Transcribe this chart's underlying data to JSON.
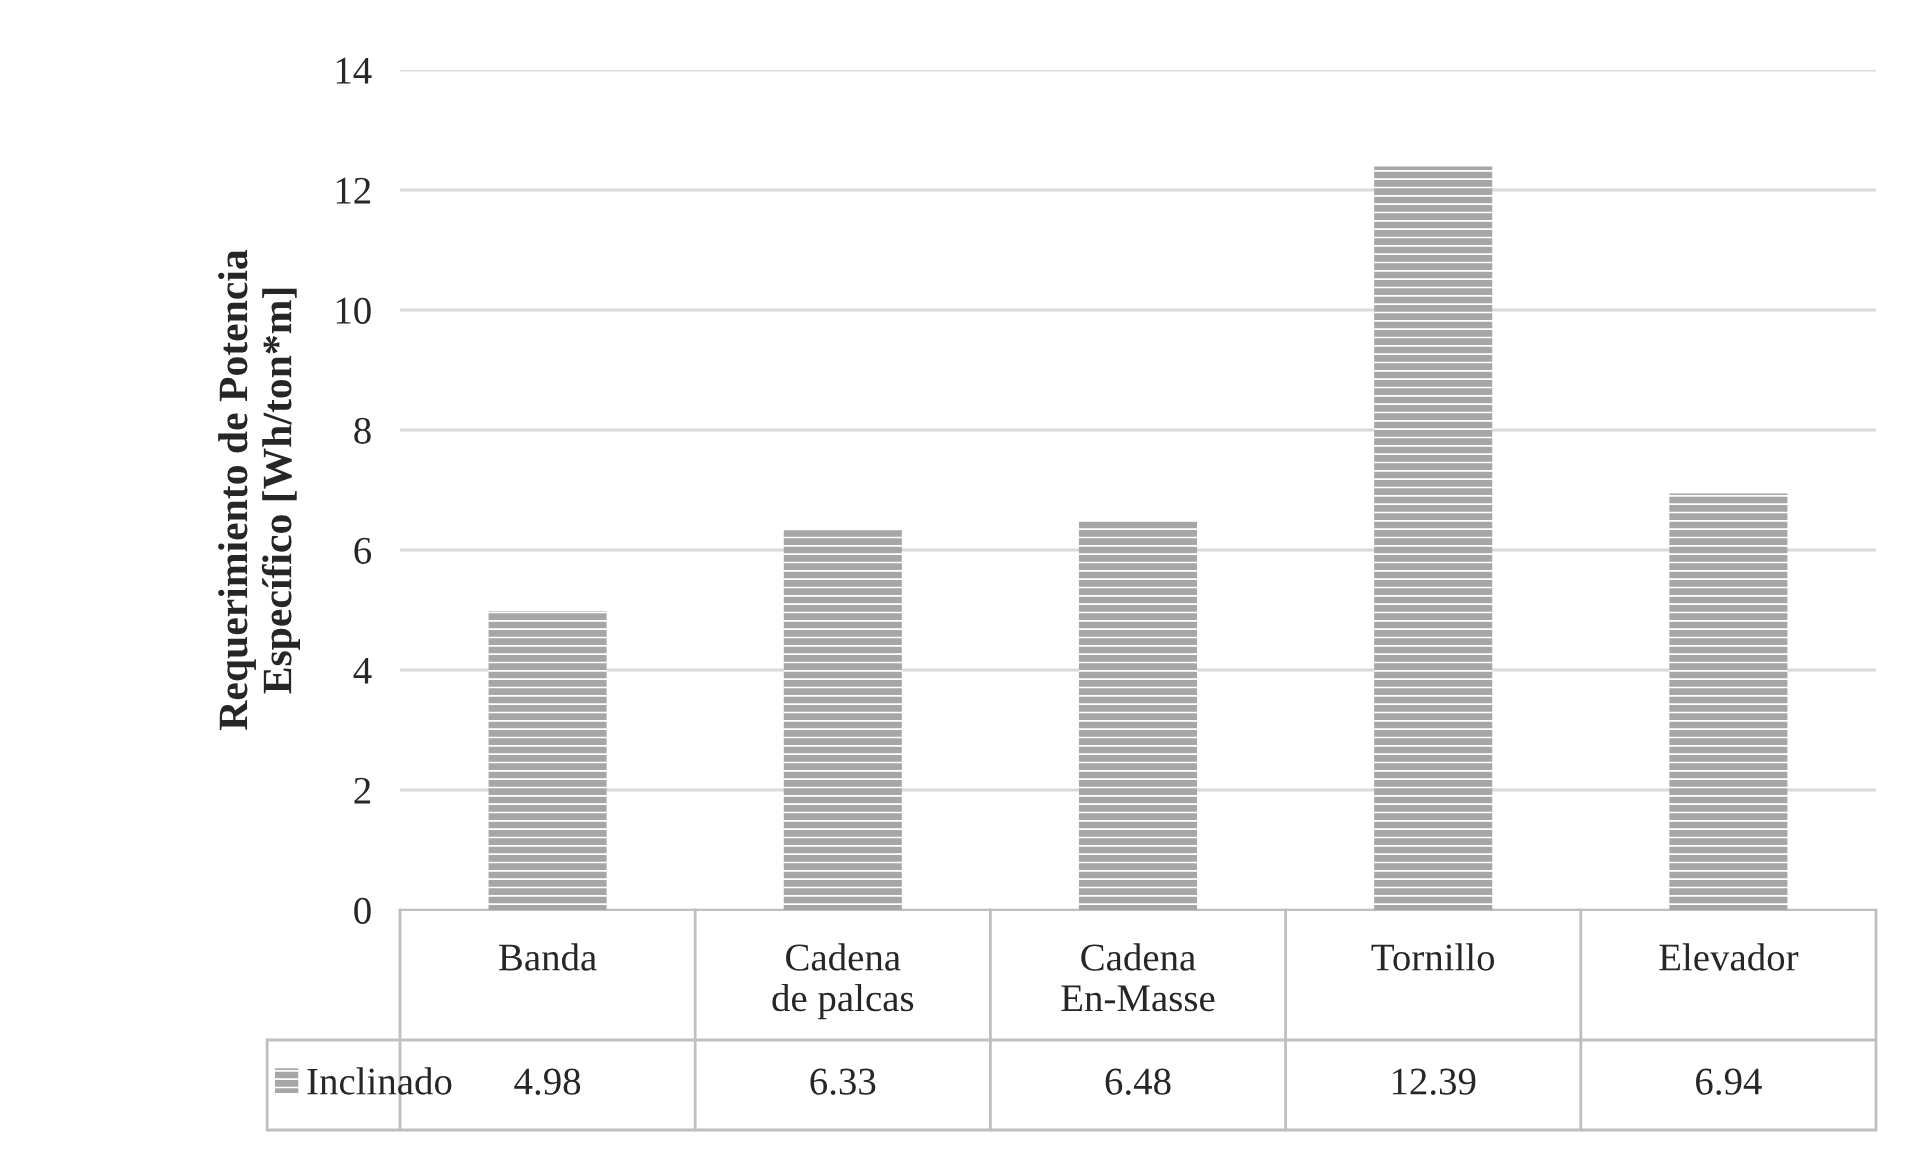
{
  "chart_data": {
    "type": "bar",
    "ylabel": "Requerimiento de Potencia\nEspecífico [Wh/ton*m]",
    "categories": [
      "Banda",
      "Cadena\nde palcas",
      "Cadena\nEn-Masse",
      "Tornillo",
      "Elevador"
    ],
    "series": [
      {
        "name": "Inclinado",
        "color": "#a6a6a6",
        "values": [
          4.98,
          6.33,
          6.48,
          12.39,
          6.94
        ]
      }
    ],
    "ylim": [
      0,
      14
    ],
    "yticks": [
      0,
      2,
      4,
      6,
      8,
      10,
      12,
      14
    ],
    "grid": "y",
    "legend": "bottom",
    "data_labels": true
  }
}
